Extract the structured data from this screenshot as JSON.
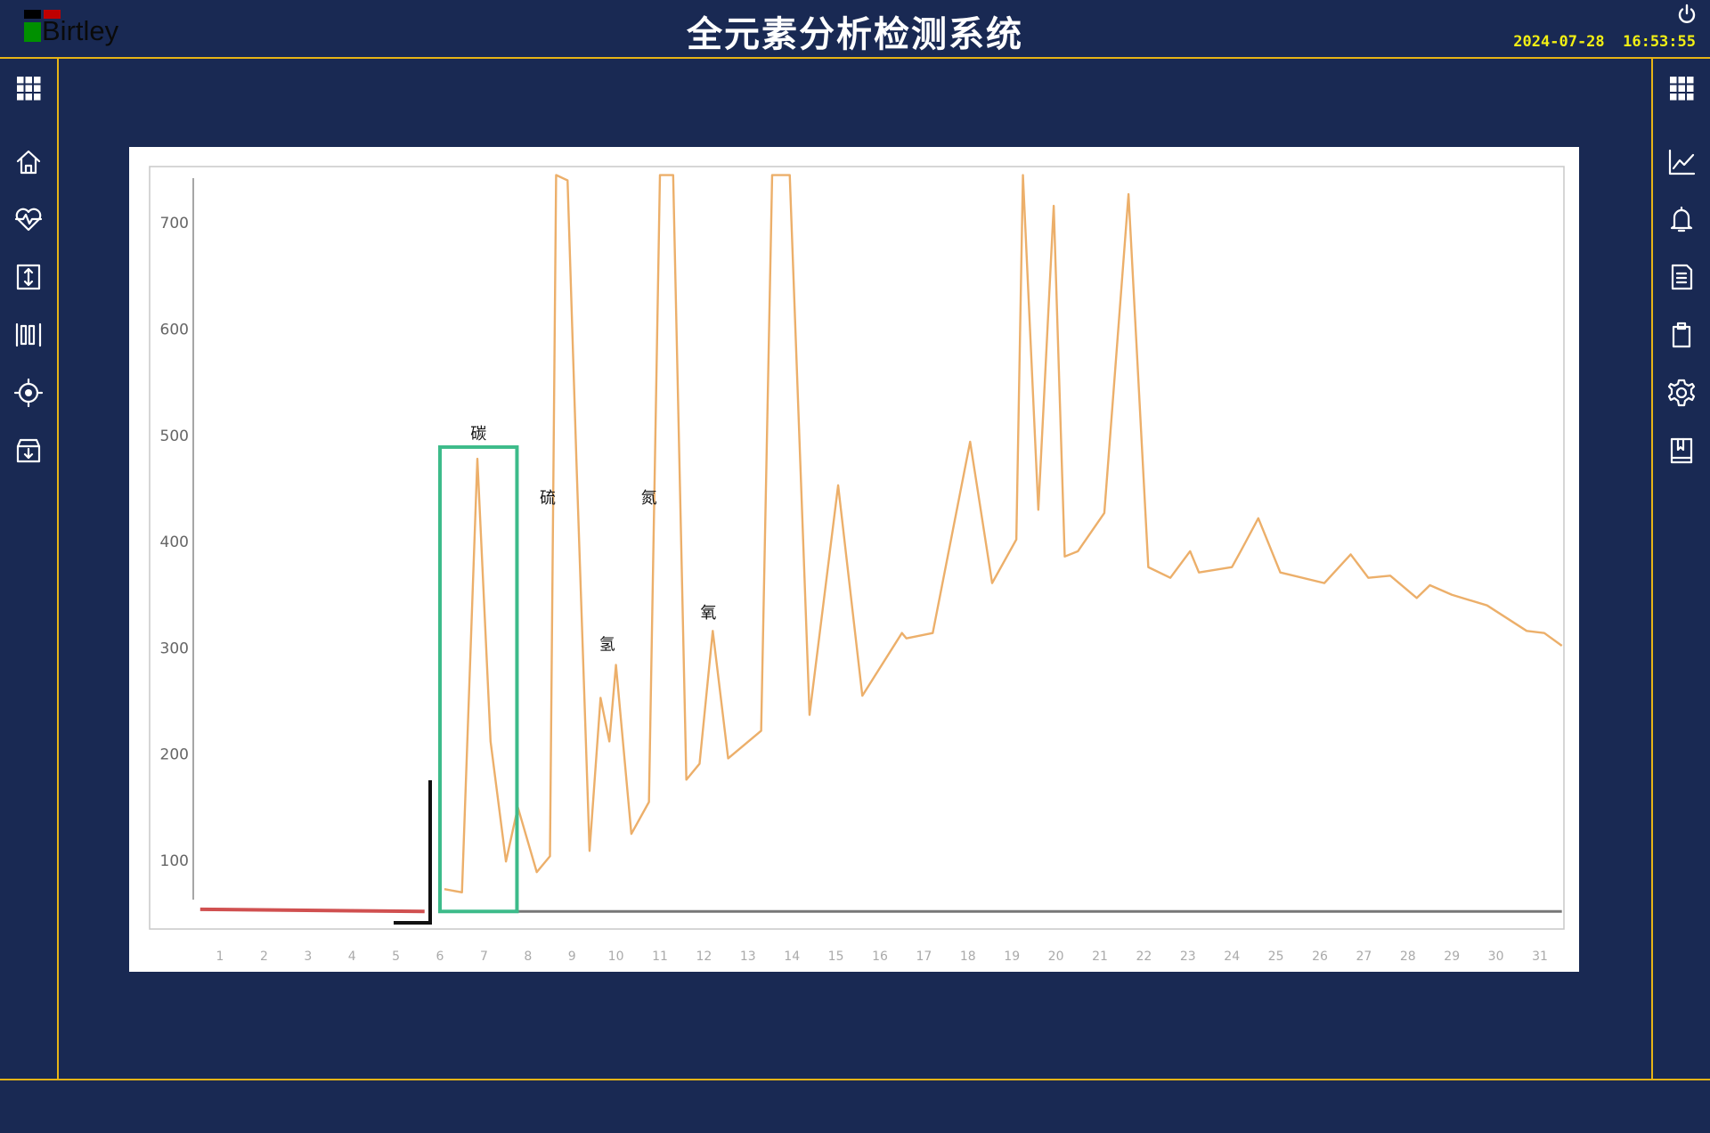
{
  "header": {
    "logo_text": "Birtley",
    "title": "全元素分析检测系统",
    "datetime": "2024-07-28  16:53:55",
    "power_icon": "power-icon"
  },
  "sidebar_left": [
    "grid-icon",
    "home-icon",
    "heart-pulse-icon",
    "vertical-arrows-icon",
    "barcode-icon",
    "target-icon",
    "archive-download-icon"
  ],
  "sidebar_right": [
    "grid-icon",
    "line-chart-icon",
    "bell-icon",
    "document-icon",
    "clipboard-icon",
    "gear-icon",
    "book-icon"
  ],
  "colors": {
    "background": "#192953",
    "accent_border": "#e7b416",
    "clock": "#f2ef14",
    "trace": "#eaa65a",
    "highlight_box": "#3dbb8a",
    "baseline_red": "#d05050"
  },
  "chart_data": {
    "type": "line",
    "title": "",
    "xlabel": "",
    "ylabel": "",
    "xlim": [
      0,
      32
    ],
    "ylim": [
      0,
      760
    ],
    "x_ticks": [
      1,
      2,
      3,
      4,
      5,
      6,
      7,
      8,
      9,
      10,
      11,
      12,
      13,
      14,
      15,
      16,
      17,
      18,
      19,
      20,
      21,
      22,
      23,
      24,
      25,
      26,
      27,
      28,
      29,
      30,
      31
    ],
    "y_ticks": [
      100,
      200,
      300,
      400,
      500,
      600,
      700
    ],
    "grid": false,
    "series": [
      {
        "color": "#eaa65a",
        "points": [
          [
            6.1,
            73
          ],
          [
            6.5,
            70
          ],
          [
            6.85,
            478
          ],
          [
            7.15,
            212
          ],
          [
            7.5,
            99
          ],
          [
            7.77,
            150
          ],
          [
            8.2,
            89
          ],
          [
            8.5,
            104
          ],
          [
            8.64,
            745
          ],
          [
            8.9,
            740
          ],
          [
            9.1,
            478
          ],
          [
            9.4,
            109
          ],
          [
            9.65,
            253
          ],
          [
            9.85,
            212
          ],
          [
            10.0,
            284
          ],
          [
            10.35,
            125
          ],
          [
            10.75,
            155
          ],
          [
            11.0,
            745
          ],
          [
            11.3,
            745
          ],
          [
            11.6,
            176
          ],
          [
            11.9,
            191
          ],
          [
            12.2,
            316
          ],
          [
            12.55,
            196
          ],
          [
            13.3,
            222
          ],
          [
            13.55,
            745
          ],
          [
            13.95,
            745
          ],
          [
            14.4,
            237
          ],
          [
            15.05,
            453
          ],
          [
            15.6,
            255
          ],
          [
            16.5,
            314
          ],
          [
            16.6,
            309
          ],
          [
            17.2,
            314
          ],
          [
            18.05,
            494
          ],
          [
            18.55,
            361
          ],
          [
            19.1,
            402
          ],
          [
            19.25,
            745
          ],
          [
            19.6,
            430
          ],
          [
            19.95,
            716
          ],
          [
            20.2,
            386
          ],
          [
            20.5,
            391
          ],
          [
            21.1,
            427
          ],
          [
            21.65,
            727
          ],
          [
            22.1,
            376
          ],
          [
            22.6,
            366
          ],
          [
            23.05,
            391
          ],
          [
            23.25,
            371
          ],
          [
            24.0,
            376
          ],
          [
            24.2,
            391
          ],
          [
            24.6,
            422
          ],
          [
            25.1,
            371
          ],
          [
            26.1,
            361
          ],
          [
            26.7,
            388
          ],
          [
            27.1,
            366
          ],
          [
            27.6,
            368
          ],
          [
            28.2,
            347
          ],
          [
            28.5,
            359
          ],
          [
            29.0,
            350
          ],
          [
            29.8,
            340
          ],
          [
            30.7,
            316
          ],
          [
            31.1,
            314
          ],
          [
            31.5,
            302
          ]
        ]
      },
      {
        "color": "#d05050",
        "points": [
          [
            0.55,
            54
          ],
          [
            5.65,
            52
          ]
        ]
      },
      {
        "color": "#777777",
        "points": [
          [
            7.77,
            52
          ],
          [
            31.5,
            52
          ]
        ]
      }
    ],
    "highlight_box": {
      "x": [
        6.0,
        7.75
      ],
      "y": [
        52,
        489
      ],
      "label": "碳"
    },
    "annotations": [
      {
        "text": "硫",
        "x": 8.45,
        "y": 442
      },
      {
        "text": "氢",
        "x": 9.8,
        "y": 304
      },
      {
        "text": "氮",
        "x": 10.75,
        "y": 442
      },
      {
        "text": "氧",
        "x": 12.1,
        "y": 334
      }
    ]
  }
}
